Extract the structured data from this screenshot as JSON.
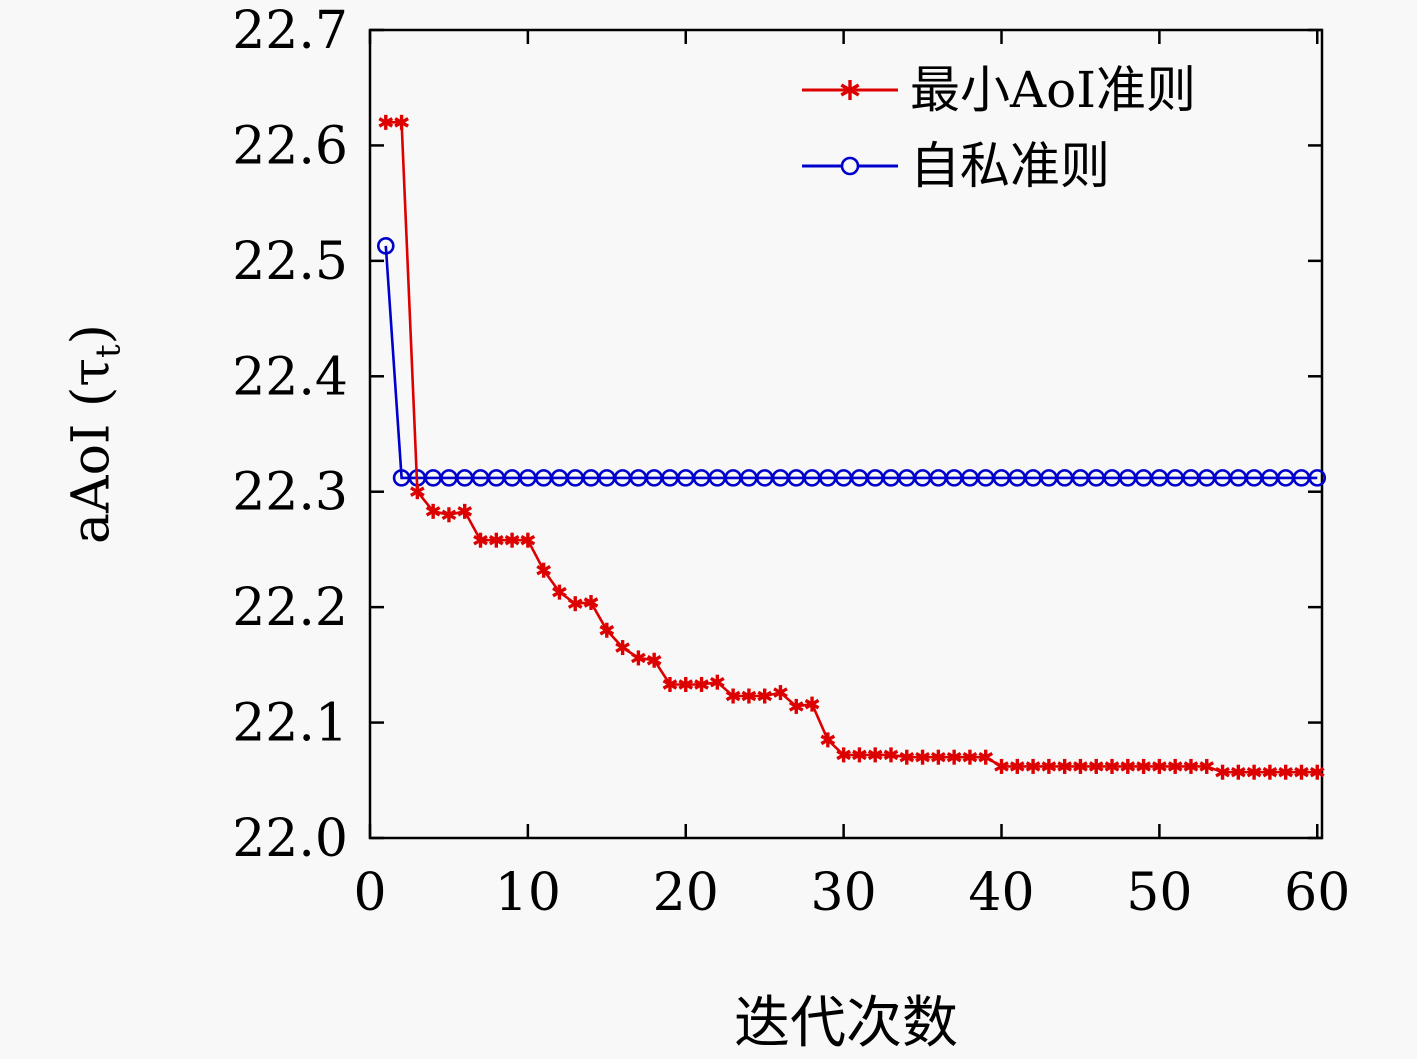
{
  "chart_data": {
    "type": "line",
    "title": "",
    "xlabel": "迭代次数",
    "ylabel": "aAoI (τt)",
    "ylabel_parts": {
      "prefix": "aAoI (τ",
      "sub": "t",
      "suffix": ")"
    },
    "xlim": [
      0,
      60.3
    ],
    "ylim": [
      22.0,
      22.7
    ],
    "x_ticks": [
      0,
      10,
      20,
      30,
      40,
      50,
      60
    ],
    "x_tick_labels": [
      "0",
      "10",
      "20",
      "30",
      "40",
      "50",
      "60"
    ],
    "y_ticks": [
      22.0,
      22.1,
      22.2,
      22.3,
      22.4,
      22.5,
      22.6,
      22.7
    ],
    "y_tick_labels": [
      "22.0",
      "22.1",
      "22.2",
      "22.3",
      "22.4",
      "22.5",
      "22.6",
      "22.7"
    ],
    "grid": false,
    "legend_position": "top-right-inside",
    "x": [
      1,
      2,
      3,
      4,
      5,
      6,
      7,
      8,
      9,
      10,
      11,
      12,
      13,
      14,
      15,
      16,
      17,
      18,
      19,
      20,
      21,
      22,
      23,
      24,
      25,
      26,
      27,
      28,
      29,
      30,
      31,
      32,
      33,
      34,
      35,
      36,
      37,
      38,
      39,
      40,
      41,
      42,
      43,
      44,
      45,
      46,
      47,
      48,
      49,
      50,
      51,
      52,
      53,
      54,
      55,
      56,
      57,
      58,
      59,
      60
    ],
    "series": [
      {
        "name": "最小AoI准则",
        "color": "#dc0000",
        "marker": "asterisk",
        "values": [
          22.62,
          22.62,
          22.3,
          22.283,
          22.28,
          22.283,
          22.258,
          22.258,
          22.258,
          22.258,
          22.232,
          22.213,
          22.203,
          22.204,
          22.18,
          22.165,
          22.156,
          22.154,
          22.133,
          22.133,
          22.133,
          22.135,
          22.123,
          22.123,
          22.123,
          22.126,
          22.114,
          22.116,
          22.085,
          22.072,
          22.072,
          22.072,
          22.072,
          22.07,
          22.07,
          22.07,
          22.07,
          22.07,
          22.07,
          22.062,
          22.062,
          22.062,
          22.062,
          22.062,
          22.062,
          22.062,
          22.062,
          22.062,
          22.062,
          22.062,
          22.062,
          22.062,
          22.062,
          22.057,
          22.057,
          22.057,
          22.057,
          22.057,
          22.057,
          22.057
        ]
      },
      {
        "name": "自私准则",
        "color": "#0000cd",
        "marker": "circle",
        "values": [
          22.513,
          22.312,
          22.312,
          22.312,
          22.312,
          22.312,
          22.312,
          22.312,
          22.312,
          22.312,
          22.312,
          22.312,
          22.312,
          22.312,
          22.312,
          22.312,
          22.312,
          22.312,
          22.312,
          22.312,
          22.312,
          22.312,
          22.312,
          22.312,
          22.312,
          22.312,
          22.312,
          22.312,
          22.312,
          22.312,
          22.312,
          22.312,
          22.312,
          22.312,
          22.312,
          22.312,
          22.312,
          22.312,
          22.312,
          22.312,
          22.312,
          22.312,
          22.312,
          22.312,
          22.312,
          22.312,
          22.312,
          22.312,
          22.312,
          22.312,
          22.312,
          22.312,
          22.312,
          22.312,
          22.312,
          22.312,
          22.312,
          22.312,
          22.312,
          22.312
        ]
      }
    ]
  }
}
